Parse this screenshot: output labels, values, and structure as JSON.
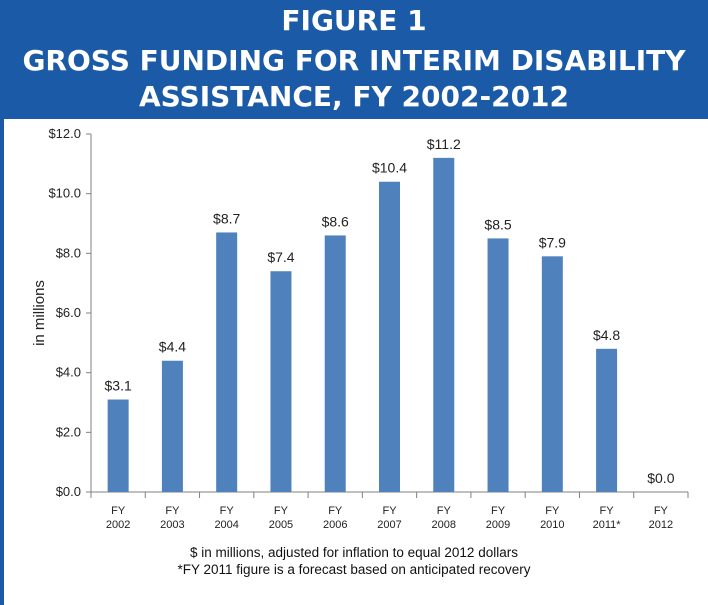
{
  "header": {
    "line1": "FIGURE 1",
    "line2": "GROSS FUNDING FOR INTERIM DISABILITY",
    "line3": "ASSISTANCE, FY 2002-2012"
  },
  "colors": {
    "header_bg": "#1b5aa6",
    "bar": "#4f81bd"
  },
  "chart_data": {
    "type": "bar",
    "ylabel": "in millions",
    "ylim": [
      0,
      12
    ],
    "yticks": [
      "$0.0",
      "$2.0",
      "$4.0",
      "$6.0",
      "$8.0",
      "$10.0",
      "$12.0"
    ],
    "categories": [
      [
        "FY",
        "2002"
      ],
      [
        "FY",
        "2003"
      ],
      [
        "FY",
        "2004"
      ],
      [
        "FY",
        "2005"
      ],
      [
        "FY",
        "2006"
      ],
      [
        "FY",
        "2007"
      ],
      [
        "FY",
        "2008"
      ],
      [
        "FY",
        "2009"
      ],
      [
        "FY",
        "2010"
      ],
      [
        "FY",
        "2011*"
      ],
      [
        "FY",
        "2012"
      ]
    ],
    "values": [
      3.1,
      4.4,
      8.7,
      7.4,
      8.6,
      10.4,
      11.2,
      8.5,
      7.9,
      4.8,
      0.0
    ],
    "data_labels": [
      "$3.1",
      "$4.4",
      "$8.7",
      "$7.4",
      "$8.6",
      "$10.4",
      "$11.2",
      "$8.5",
      "$7.9",
      "$4.8",
      "$0.0"
    ],
    "grid": false
  },
  "footnotes": {
    "line1": "$ in millions, adjusted for inflation to equal 2012 dollars",
    "line2": "*FY 2011 figure is a forecast based on anticipated recovery"
  }
}
